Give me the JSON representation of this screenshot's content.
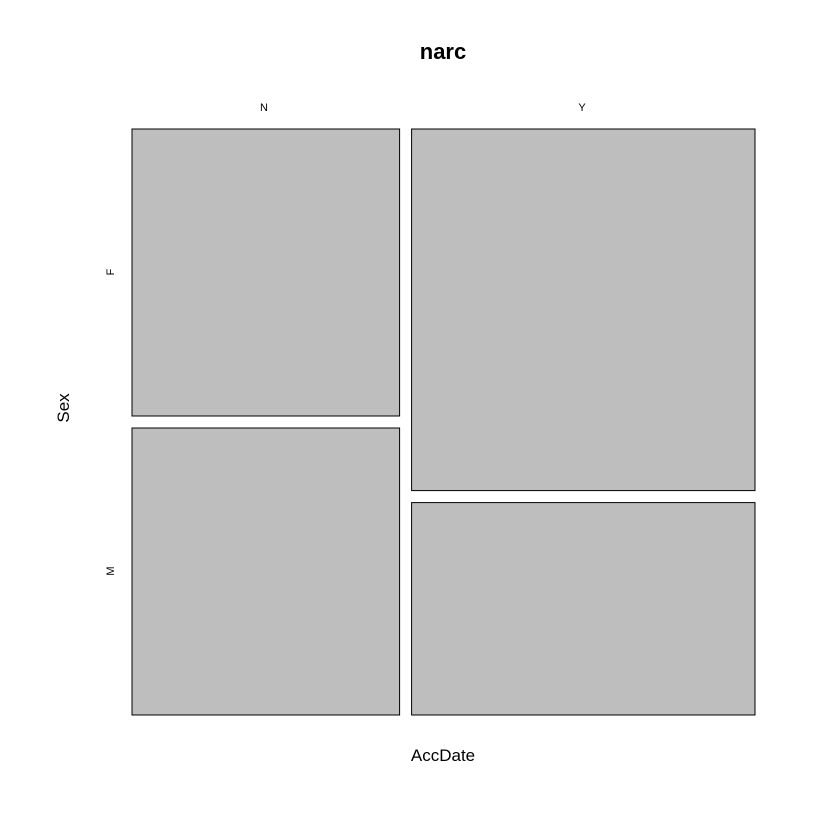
{
  "chart_data": {
    "type": "mosaic",
    "title": "narc",
    "xlabel": "AccDate",
    "ylabel": "Sex",
    "x_categories": [
      "N",
      "Y"
    ],
    "y_categories": [
      "F",
      "M"
    ],
    "cell_fill": "#bebebe",
    "cell_stroke": "#000000",
    "column_proportions": {
      "N": 0.438,
      "Y": 0.562
    },
    "cells": [
      {
        "x": "N",
        "y": "F",
        "proportion_within_x": 0.5
      },
      {
        "x": "N",
        "y": "M",
        "proportion_within_x": 0.5
      },
      {
        "x": "Y",
        "y": "F",
        "proportion_within_x": 0.63
      },
      {
        "x": "Y",
        "y": "M",
        "proportion_within_x": 0.37
      }
    ]
  }
}
